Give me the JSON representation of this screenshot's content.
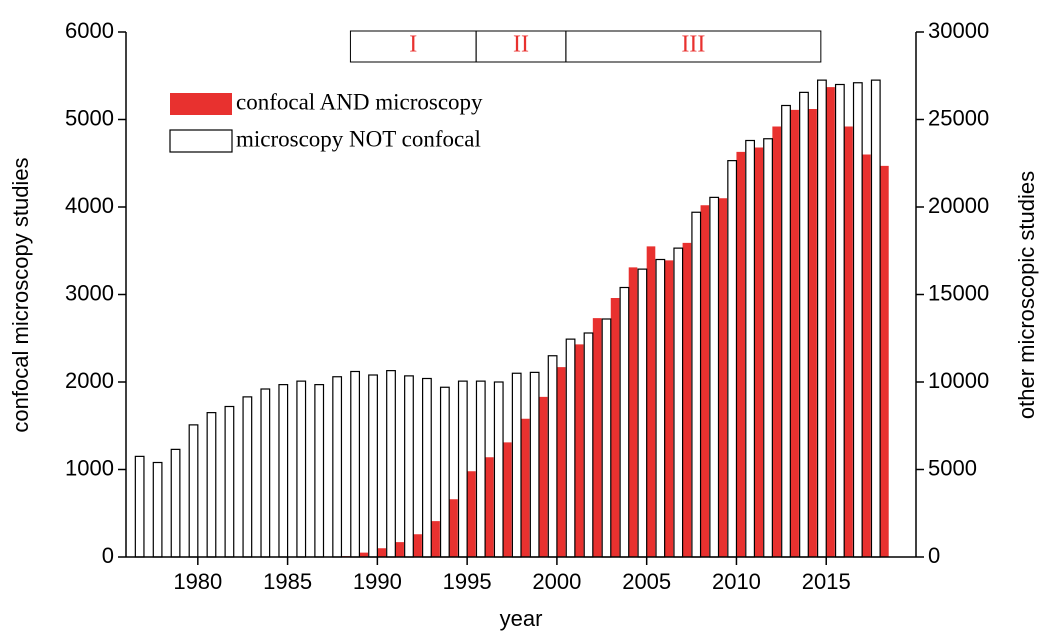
{
  "chart_data": {
    "type": "bar",
    "x_label": "year",
    "y_label": "confocal microscopy studies",
    "y2_label": "other microscopic studies",
    "x": [
      1977,
      1978,
      1979,
      1980,
      1981,
      1982,
      1983,
      1984,
      1985,
      1986,
      1987,
      1988,
      1989,
      1990,
      1991,
      1992,
      1993,
      1994,
      1995,
      1996,
      1997,
      1998,
      1999,
      2000,
      2001,
      2002,
      2003,
      2004,
      2005,
      2006,
      2007,
      2008,
      2009,
      2010,
      2011,
      2012,
      2013,
      2014,
      2015,
      2016,
      2017,
      2018
    ],
    "xlim": [
      1976,
      2020
    ],
    "xticks": [
      1980,
      1985,
      1990,
      1995,
      2000,
      2005,
      2010,
      2015
    ],
    "ylim": [
      0,
      6000
    ],
    "yticks": [
      0,
      1000,
      2000,
      3000,
      4000,
      5000,
      6000
    ],
    "y2lim": [
      0,
      30000
    ],
    "y2ticks": [
      0,
      5000,
      10000,
      15000,
      20000,
      25000,
      30000
    ],
    "series": [
      {
        "name": "confocal AND microscopy",
        "color": "#e8312f",
        "values": [
          0,
          0,
          0,
          0,
          0,
          0,
          0,
          0,
          0,
          0,
          0,
          10,
          50,
          100,
          170,
          260,
          410,
          660,
          980,
          1140,
          1310,
          1580,
          1830,
          2170,
          2430,
          2730,
          2960,
          3310,
          3550,
          3390,
          3590,
          4020,
          4100,
          4630,
          4680,
          4920,
          5110,
          5120,
          5370,
          4920,
          4600,
          4470
        ]
      },
      {
        "name": "microscopy NOT confocal",
        "color": "#ffffff",
        "axis": "y2",
        "values": [
          5750,
          5400,
          6150,
          7550,
          8250,
          8600,
          9150,
          9600,
          9850,
          10050,
          9850,
          10300,
          10600,
          10400,
          10650,
          10350,
          10200,
          9700,
          10050,
          10050,
          10000,
          10500,
          10550,
          11500,
          12450,
          12800,
          13600,
          15400,
          16450,
          17000,
          17650,
          19700,
          20550,
          22650,
          23800,
          23900,
          25800,
          26550,
          27250,
          27000,
          27100,
          27250
        ]
      }
    ],
    "periods": [
      {
        "label": "I",
        "start": 1988.5,
        "end": 1995.5
      },
      {
        "label": "II",
        "start": 1995.5,
        "end": 2000.5
      },
      {
        "label": "III",
        "start": 2000.5,
        "end": 2014.7
      }
    ],
    "period_color": "#e8312f",
    "legend": "upper left"
  }
}
